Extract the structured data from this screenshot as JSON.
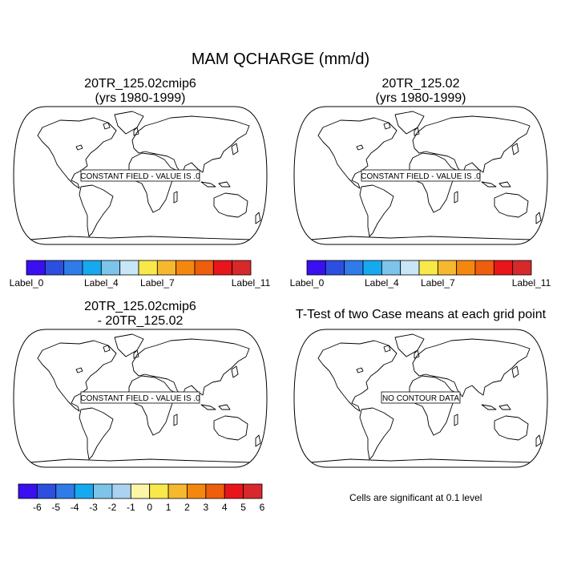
{
  "main_title": "MAM QCHARGE (mm/d)",
  "panels": [
    {
      "title_line1": "20TR_125.02cmip6",
      "title_line2": "(yrs 1980-1999)",
      "message": "CONSTANT FIELD - VALUE IS .0"
    },
    {
      "title_line1": "20TR_125.02",
      "title_line2": "(yrs 1980-1999)",
      "message": "CONSTANT FIELD - VALUE IS .0"
    },
    {
      "title_line1": "20TR_125.02cmip6",
      "title_line2": "- 20TR_125.02",
      "message": "CONSTANT FIELD - VALUE IS .0"
    },
    {
      "title_line1": "T-Test of two Case means at each grid point",
      "title_line2": "",
      "message": "NO CONTOUR DATA"
    }
  ],
  "footnote": "Cells are significant at 0.1 level",
  "chart_data": [
    {
      "type": "colorbar",
      "name": "panel-1-colorbar",
      "colors": [
        "#3a0ff0",
        "#2c4fe0",
        "#2f7be8",
        "#17a9ef",
        "#7cc4ea",
        "#c7e6f7",
        "#f8e84a",
        "#f5b82e",
        "#f4880f",
        "#ef5e0c",
        "#e8161a",
        "#d7282b"
      ],
      "tick_labels": [
        "Label_0",
        "Label_4",
        "Label_7",
        "Label_11"
      ],
      "tick_boundaries": [
        0,
        4,
        7,
        12
      ]
    },
    {
      "type": "colorbar",
      "name": "panel-2-colorbar",
      "colors": [
        "#3a0ff0",
        "#2c4fe0",
        "#2f7be8",
        "#17a9ef",
        "#7cc4ea",
        "#c7e6f7",
        "#f8e84a",
        "#f5b82e",
        "#f4880f",
        "#ef5e0c",
        "#e8161a",
        "#d7282b"
      ],
      "tick_labels": [
        "Label_0",
        "Label_4",
        "Label_7",
        "Label_11"
      ],
      "tick_boundaries": [
        0,
        4,
        7,
        12
      ]
    },
    {
      "type": "colorbar",
      "name": "difference-colorbar",
      "colors": [
        "#3a0ff0",
        "#2c4fe0",
        "#2f7be8",
        "#17a9ef",
        "#7cc4ea",
        "#a9d3f1",
        "#fcf4a6",
        "#f8e84a",
        "#f5b82e",
        "#f4880f",
        "#ef5e0c",
        "#e8161a",
        "#d7282b"
      ],
      "tick_labels": [
        "-6",
        "-5",
        "-4",
        "-3",
        "-2",
        "-1",
        "0",
        "1",
        "2",
        "3",
        "4",
        "5",
        "6"
      ],
      "tick_boundaries": [
        1,
        2,
        3,
        4,
        5,
        6,
        7,
        8,
        9,
        10,
        11,
        12,
        13
      ]
    }
  ]
}
